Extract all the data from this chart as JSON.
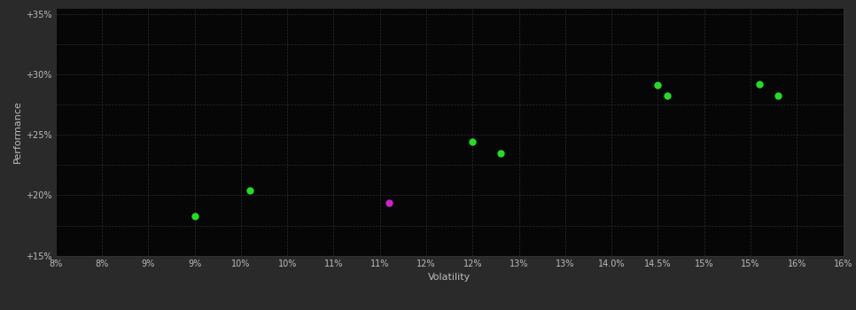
{
  "background_color": "#2a2a2a",
  "plot_bg_color": "#060606",
  "grid_color": "#2c2c2c",
  "text_color": "#bbbbbb",
  "xlabel": "Volatility",
  "ylabel": "Performance",
  "xlim": [
    0.08,
    0.165
  ],
  "ylim": [
    0.15,
    0.355
  ],
  "xtick_values": [
    0.08,
    0.085,
    0.09,
    0.095,
    0.1,
    0.105,
    0.11,
    0.115,
    0.12,
    0.125,
    0.13,
    0.135,
    0.14,
    0.145,
    0.15,
    0.155,
    0.16,
    0.165
  ],
  "ytick_major": [
    0.15,
    0.2,
    0.25,
    0.3,
    0.35
  ],
  "ytick_minor_step": 0.025,
  "green_points": [
    [
      0.095,
      0.183
    ],
    [
      0.101,
      0.204
    ],
    [
      0.125,
      0.244
    ],
    [
      0.128,
      0.235
    ],
    [
      0.145,
      0.291
    ],
    [
      0.146,
      0.282
    ],
    [
      0.156,
      0.292
    ],
    [
      0.158,
      0.282
    ]
  ],
  "magenta_points": [
    [
      0.116,
      0.194
    ]
  ],
  "green_color": "#22dd22",
  "magenta_color": "#cc22cc",
  "marker_size": 6
}
